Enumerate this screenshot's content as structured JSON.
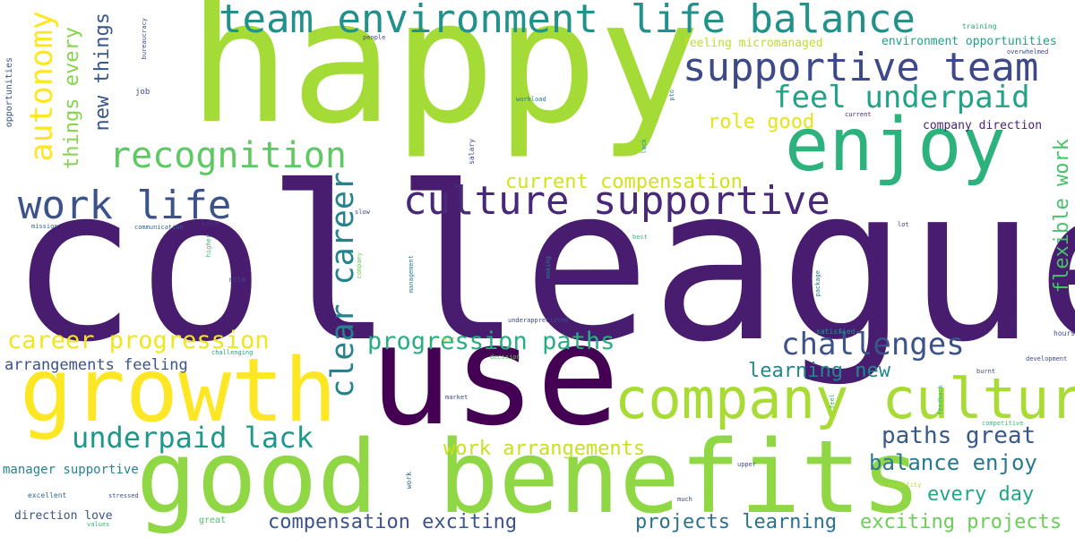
{
  "words": [
    {
      "text": "colleagues",
      "color": "#481c6e"
    },
    {
      "text": "happy",
      "color": "#a5db36"
    },
    {
      "text": "use",
      "color": "#440154"
    },
    {
      "text": "good benefits",
      "color": "#8fd744"
    },
    {
      "text": "growth",
      "color": "#fde725"
    },
    {
      "text": "enjoy",
      "color": "#2db27d"
    },
    {
      "text": "company culture",
      "color": "#a8db34"
    },
    {
      "text": "team environment",
      "color": "#21918c"
    },
    {
      "text": "life balance",
      "color": "#21918c"
    },
    {
      "text": "culture supportive",
      "color": "#482878"
    },
    {
      "text": "supportive team",
      "color": "#3e4989"
    },
    {
      "text": "work life",
      "color": "#3b528b"
    },
    {
      "text": "recognition",
      "color": "#5ec962"
    },
    {
      "text": "feel underpaid",
      "color": "#20a386"
    },
    {
      "text": "challenges",
      "color": "#3b528b"
    },
    {
      "text": "underpaid lack",
      "color": "#1f988b"
    },
    {
      "text": "progression paths",
      "color": "#28ae80"
    },
    {
      "text": "career progression",
      "color": "#f1e51d"
    },
    {
      "text": "autonomy",
      "color": "#fde725"
    },
    {
      "text": "clear career",
      "color": "#26828e"
    },
    {
      "text": "current compensation",
      "color": "#d2e21b"
    },
    {
      "text": "role good",
      "color": "#e5e419"
    },
    {
      "text": "paths great",
      "color": "#38598c"
    },
    {
      "text": "balance enjoy",
      "color": "#2a788e"
    },
    {
      "text": "learning new",
      "color": "#24878e"
    },
    {
      "text": "compensation exciting",
      "color": "#3b528b"
    },
    {
      "text": "projects learning",
      "color": "#2c728e"
    },
    {
      "text": "exciting projects",
      "color": "#6ccd5a"
    },
    {
      "text": "work arrangements",
      "color": "#c8e020"
    },
    {
      "text": "every day",
      "color": "#22a785"
    },
    {
      "text": "flexible work",
      "color": "#4ac16d"
    },
    {
      "text": "new things",
      "color": "#39568c"
    },
    {
      "text": "things every",
      "color": "#84d44b"
    },
    {
      "text": "arrangements feeling",
      "color": "#3b528b"
    },
    {
      "text": "manager supportive",
      "color": "#25858e"
    },
    {
      "text": "direction love",
      "color": "#3b528b"
    },
    {
      "text": "feeling micromanaged",
      "color": "#bddf26"
    },
    {
      "text": "environment opportunities",
      "color": "#1fa187"
    },
    {
      "text": "company direction",
      "color": "#482475"
    },
    {
      "text": "opportunities",
      "color": "#3b528b"
    },
    {
      "text": "bureaucracy",
      "color": "#3b528b"
    },
    {
      "text": "people",
      "color": "#3e4989"
    },
    {
      "text": "training",
      "color": "#25ab82"
    },
    {
      "text": "overwhelmed",
      "color": "#3e4989"
    },
    {
      "text": "job",
      "color": "#3e4989"
    },
    {
      "text": "workload",
      "color": "#2a788e"
    },
    {
      "text": "pto",
      "color": "#26828e"
    },
    {
      "text": "current",
      "color": "#482878"
    },
    {
      "text": "lack",
      "color": "#1f9e89"
    },
    {
      "text": "salary",
      "color": "#3e4989"
    },
    {
      "text": "mission",
      "color": "#31688e"
    },
    {
      "text": "communication",
      "color": "#31688e"
    },
    {
      "text": "love",
      "color": "#46337e"
    },
    {
      "text": "higher",
      "color": "#35b779"
    },
    {
      "text": "slow",
      "color": "#3e4989"
    },
    {
      "text": "lot",
      "color": "#46337e"
    },
    {
      "text": "best",
      "color": "#35b779"
    },
    {
      "text": "role",
      "color": "#3e4989"
    },
    {
      "text": "company",
      "color": "#6ece58"
    },
    {
      "text": "management",
      "color": "#26828e"
    },
    {
      "text": "making",
      "color": "#2a788e"
    },
    {
      "text": "package",
      "color": "#2a788e"
    },
    {
      "text": "underappreciated",
      "color": "#3e4989"
    },
    {
      "text": "satisfied",
      "color": "#21918c"
    },
    {
      "text": "hours",
      "color": "#3e4989"
    },
    {
      "text": "bit",
      "color": "#b5de2b"
    },
    {
      "text": "challenging",
      "color": "#1fa187"
    },
    {
      "text": "decision",
      "color": "#5ec962"
    },
    {
      "text": "development",
      "color": "#3e4989"
    },
    {
      "text": "burnt",
      "color": "#3e4989"
    },
    {
      "text": "market",
      "color": "#3e4989"
    },
    {
      "text": "feel",
      "color": "#35b779"
    },
    {
      "text": "feedback",
      "color": "#35b779"
    },
    {
      "text": "competitive",
      "color": "#35b779"
    },
    {
      "text": "upper",
      "color": "#3e4989"
    },
    {
      "text": "work",
      "color": "#31688e"
    },
    {
      "text": "flexibility",
      "color": "#b5de2b"
    },
    {
      "text": "excellent",
      "color": "#31688e"
    },
    {
      "text": "stressed",
      "color": "#3e4989"
    },
    {
      "text": "much",
      "color": "#3e4989"
    },
    {
      "text": "great",
      "color": "#4ac16d"
    },
    {
      "text": "values",
      "color": "#35b779"
    }
  ]
}
